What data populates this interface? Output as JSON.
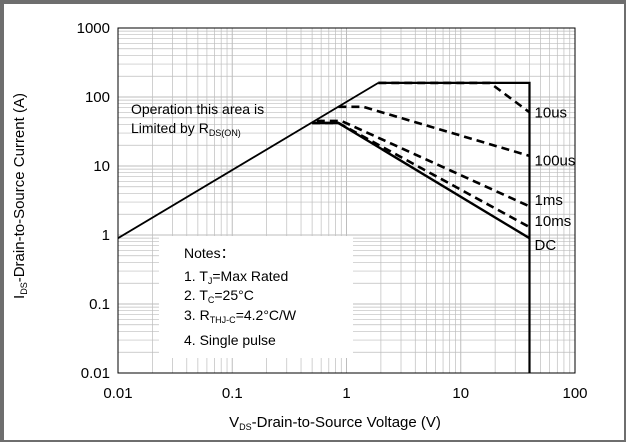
{
  "chart_data": {
    "type": "line",
    "x_scale": "log",
    "y_scale": "log",
    "xlim": [
      0.01,
      100
    ],
    "ylim": [
      0.01,
      1000
    ],
    "x_ticks": [
      "0.01",
      "0.1",
      "1",
      "10",
      "100"
    ],
    "y_ticks": [
      "0.01",
      "0.1",
      "1",
      "10",
      "100",
      "1000"
    ],
    "grid": true,
    "xlabel": {
      "prefix": "V",
      "sub": "DS",
      "rest": "-Drain-to-Source Voltage (V)"
    },
    "ylabel": {
      "prefix": "I",
      "sub": "DS",
      "rest": "-Drain-to-Source Current (A)"
    },
    "annotation": {
      "line1": "Operation this area is",
      "line2_text": "Limited  by R",
      "line2_sub": "DS(ON)"
    },
    "notes": {
      "title": "Notes：",
      "n1_prefix": "1. T",
      "n1_sub": "J",
      "n1_rest": "=Max Rated",
      "n2_prefix": "2. T",
      "n2_sub": "C",
      "n2_rest": "=25°C",
      "n3_prefix": "3. R",
      "n3_sub": "THJ-C",
      "n3_rest": "=4.2°C/W",
      "n4": "4. Single pulse"
    },
    "rdson_limit": [
      [
        0.01,
        0.9
      ],
      [
        1.9,
        160
      ]
    ],
    "vds_max": 40,
    "series": [
      {
        "name": "10us",
        "style": "dashed",
        "points": [
          [
            1.9,
            160
          ],
          [
            18,
            160
          ],
          [
            40,
            60
          ]
        ]
      },
      {
        "name": "100us",
        "style": "dashed",
        "points": [
          [
            0.85,
            72
          ],
          [
            1.4,
            72
          ],
          [
            40,
            14
          ]
        ]
      },
      {
        "name": "1ms",
        "style": "dashed",
        "points": [
          [
            0.55,
            45
          ],
          [
            0.9,
            45
          ],
          [
            40,
            2.6
          ]
        ]
      },
      {
        "name": "10ms",
        "style": "dashed",
        "points": [
          [
            0.5,
            42
          ],
          [
            0.85,
            42
          ],
          [
            40,
            1.3
          ]
        ]
      },
      {
        "name": "DC",
        "style": "solid",
        "points": [
          [
            0.5,
            42
          ],
          [
            0.85,
            42
          ],
          [
            40,
            0.9
          ]
        ]
      }
    ],
    "envelope": {
      "style": "solid",
      "points": [
        [
          1.9,
          160
        ],
        [
          40,
          160
        ],
        [
          40,
          0.01
        ]
      ]
    },
    "colors": {
      "line": "#000000",
      "grid": "#bdbdbd",
      "frame": "#6e6e6e"
    }
  }
}
